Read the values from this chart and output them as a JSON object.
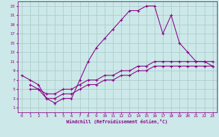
{
  "xlabel": "Windchill (Refroidissement éolien,°C)",
  "bg_color": "#cce8e8",
  "grid_color": "#aacccc",
  "line_color": "#880088",
  "xlim": [
    -0.5,
    23.5
  ],
  "ylim": [
    0,
    24
  ],
  "xticks": [
    0,
    1,
    2,
    3,
    4,
    5,
    6,
    7,
    8,
    9,
    10,
    11,
    12,
    13,
    14,
    15,
    16,
    17,
    18,
    19,
    20,
    21,
    22,
    23
  ],
  "yticks": [
    1,
    3,
    5,
    7,
    9,
    11,
    13,
    15,
    17,
    19,
    21,
    23
  ],
  "series1_x": [
    0,
    1,
    2,
    3,
    4,
    5,
    6,
    7,
    8,
    9,
    10,
    11,
    12,
    13,
    14,
    15,
    16,
    17,
    18,
    19,
    20,
    21,
    22,
    23
  ],
  "series1_y": [
    8,
    7,
    6,
    3,
    2,
    3,
    3,
    7,
    11,
    14,
    16,
    18,
    20,
    22,
    22,
    23,
    23,
    17,
    21,
    15,
    13,
    11,
    11,
    11
  ],
  "series2_x": [
    1,
    2,
    3,
    4,
    5,
    6,
    7,
    8,
    9,
    10,
    11,
    12,
    13,
    14,
    15,
    16,
    17,
    18,
    19,
    20,
    21,
    22,
    23
  ],
  "series2_y": [
    6,
    5,
    4,
    4,
    5,
    5,
    6,
    7,
    7,
    8,
    8,
    9,
    9,
    10,
    10,
    11,
    11,
    11,
    11,
    11,
    11,
    11,
    10
  ],
  "series3_x": [
    1,
    2,
    3,
    4,
    5,
    6,
    7,
    8,
    9,
    10,
    11,
    12,
    13,
    14,
    15,
    16,
    17,
    18,
    19,
    20,
    21,
    22,
    23
  ],
  "series3_y": [
    5,
    5,
    3,
    3,
    4,
    4,
    5,
    6,
    6,
    7,
    7,
    8,
    8,
    9,
    9,
    10,
    10,
    10,
    10,
    10,
    10,
    10,
    10
  ]
}
